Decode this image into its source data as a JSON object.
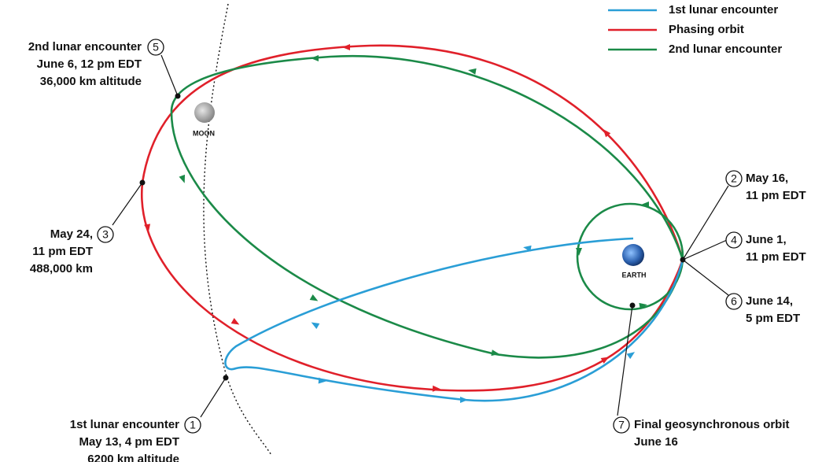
{
  "legend": [
    {
      "label": "1st lunar encounter",
      "color": "#2a9ed6"
    },
    {
      "label": "Phasing orbit",
      "color": "#e0202a"
    },
    {
      "label": "2nd lunar encounter",
      "color": "#1b8a48"
    }
  ],
  "bodies": {
    "moon": "MOON",
    "earth": "EARTH"
  },
  "events": [
    {
      "number": 1,
      "lines": [
        "1st lunar encounter",
        "May 13, 4 pm EDT",
        "6200 km altitude"
      ]
    },
    {
      "number": 2,
      "lines": [
        "May 16,",
        "11 pm EDT"
      ]
    },
    {
      "number": 3,
      "lines": [
        "May 24,",
        "11 pm EDT",
        "488,000 km"
      ]
    },
    {
      "number": 4,
      "lines": [
        "June 1,",
        "11 pm EDT"
      ]
    },
    {
      "number": 5,
      "lines": [
        "2nd lunar encounter",
        "June 6, 12 pm EDT",
        "36,000 km altitude"
      ]
    },
    {
      "number": 6,
      "lines": [
        "June 14,",
        "5 pm EDT"
      ]
    },
    {
      "number": 7,
      "lines": [
        "Final geosynchronous orbit",
        "June 16"
      ]
    }
  ]
}
